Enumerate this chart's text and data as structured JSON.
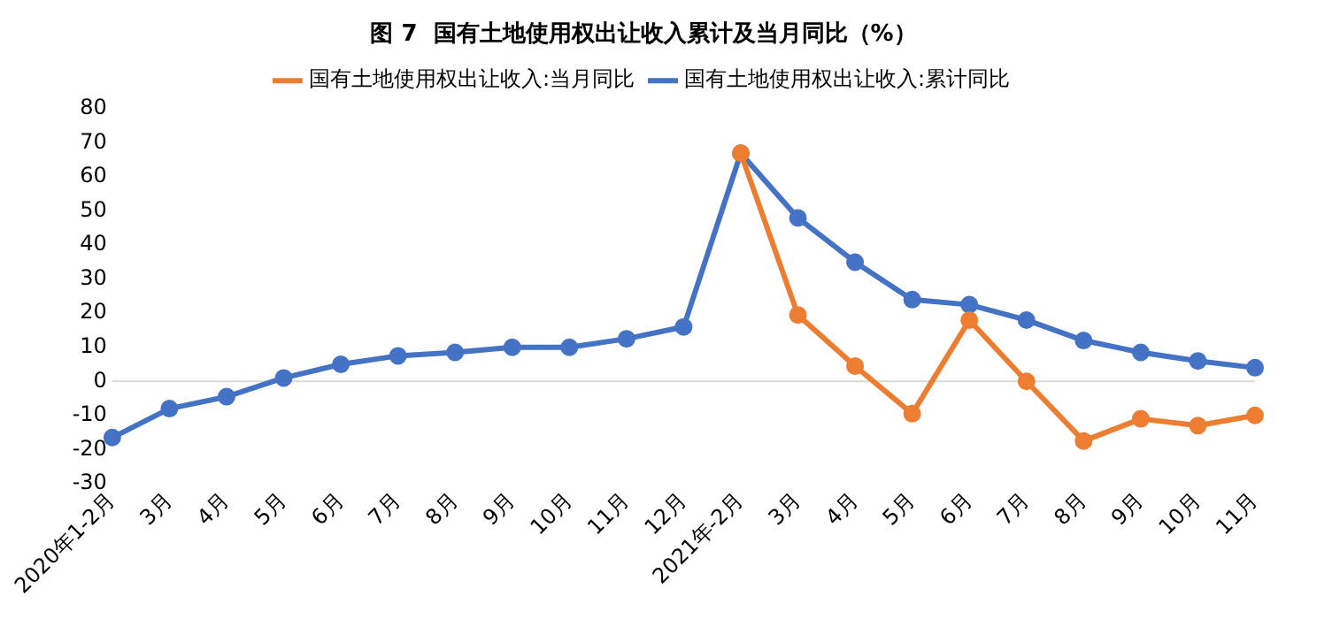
{
  "chart_data": {
    "type": "line",
    "title": "图 7  国有土地使用权出让收入累计及当月同比（%）",
    "categories": [
      "2020年1-2月",
      "3月",
      "4月",
      "5月",
      "6月",
      "7月",
      "8月",
      "9月",
      "10月",
      "11月",
      "12月",
      "2021年-2月",
      "3月",
      "4月",
      "5月",
      "6月",
      "7月",
      "8月",
      "9月",
      "10月",
      "11月"
    ],
    "series": [
      {
        "name": "国有土地使用权出让收入:累计同比",
        "color": "#4472c4",
        "values": [
          -16.5,
          -8,
          -4.5,
          1,
          5,
          7.5,
          8.5,
          10,
          10,
          12.5,
          16,
          67,
          48,
          35,
          24,
          22.5,
          18,
          12,
          8.5,
          6,
          4
        ]
      },
      {
        "name": "国有土地使用权出让收入:当月同比",
        "color": "#ed7d31",
        "values": [
          null,
          null,
          null,
          null,
          null,
          null,
          null,
          null,
          null,
          null,
          null,
          67,
          19.5,
          4.5,
          -9.5,
          18,
          0,
          -17.5,
          -11,
          -13,
          -10
        ]
      }
    ],
    "ylim": [
      -30,
      80
    ],
    "yticks": [
      -30,
      -20,
      -10,
      0,
      10,
      20,
      30,
      40,
      50,
      60,
      70,
      80
    ],
    "ref_lines": [
      {
        "axis": "y",
        "value": 0,
        "color": "#d9d9d9"
      }
    ],
    "grid": false,
    "legend": "top",
    "marker": "circle",
    "line_style": "solid"
  }
}
